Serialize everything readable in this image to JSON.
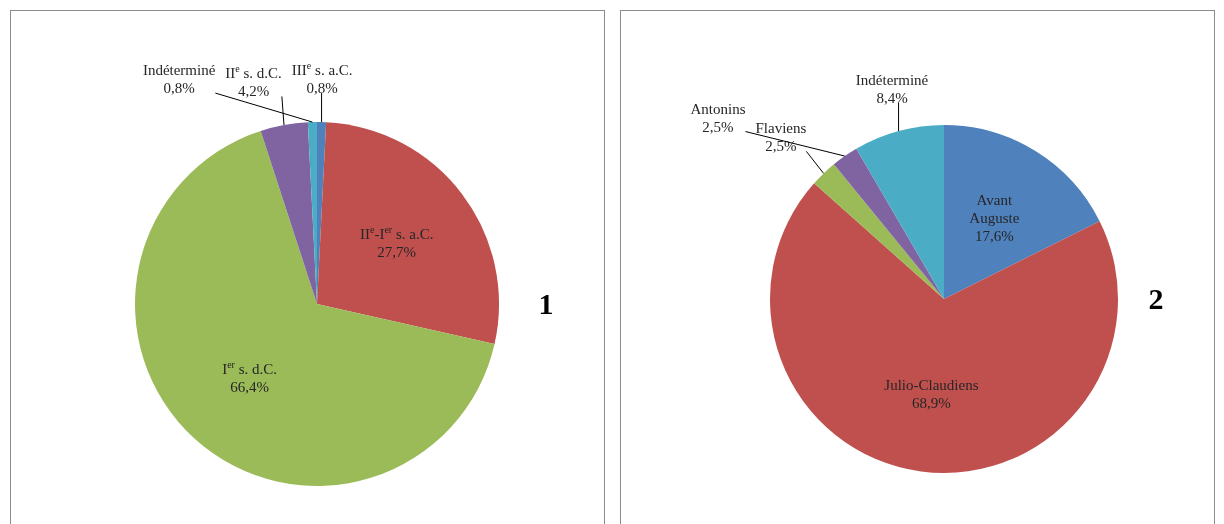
{
  "chart_data": [
    {
      "type": "pie",
      "categories": [
        "III$^{e}$ s. a.C.",
        "II$^{e}$-I$^{er}$ s. a.C.",
        "I$^{er}$ s. d.C.",
        "II$^{e}$ s. d.C.",
        "Indéterminé"
      ],
      "values": [
        0.8,
        27.7,
        66.4,
        4.2,
        0.8
      ],
      "value_labels": [
        "0,8%",
        "27,7%",
        "66,4%",
        "4,2%",
        "0,8%"
      ],
      "colors": [
        "#4f81bd",
        "#c0504d",
        "#9bbb59",
        "#8064a2",
        "#4bacc6"
      ],
      "legend": false,
      "annotations": [
        "1"
      ]
    },
    {
      "type": "pie",
      "categories": [
        "Avant Auguste",
        "Julio-Claudiens",
        "Flaviens",
        "Antonins",
        "Indéterminé"
      ],
      "values": [
        17.6,
        68.9,
        2.5,
        2.5,
        8.4
      ],
      "value_labels": [
        "17,6%",
        "68,9%",
        "2,5%",
        "2,5%",
        "8,4%"
      ],
      "colors": [
        "#4f81bd",
        "#c0504d",
        "#9bbb59",
        "#8064a2",
        "#4bacc6"
      ],
      "legend": false,
      "annotations": [
        "2"
      ]
    }
  ]
}
